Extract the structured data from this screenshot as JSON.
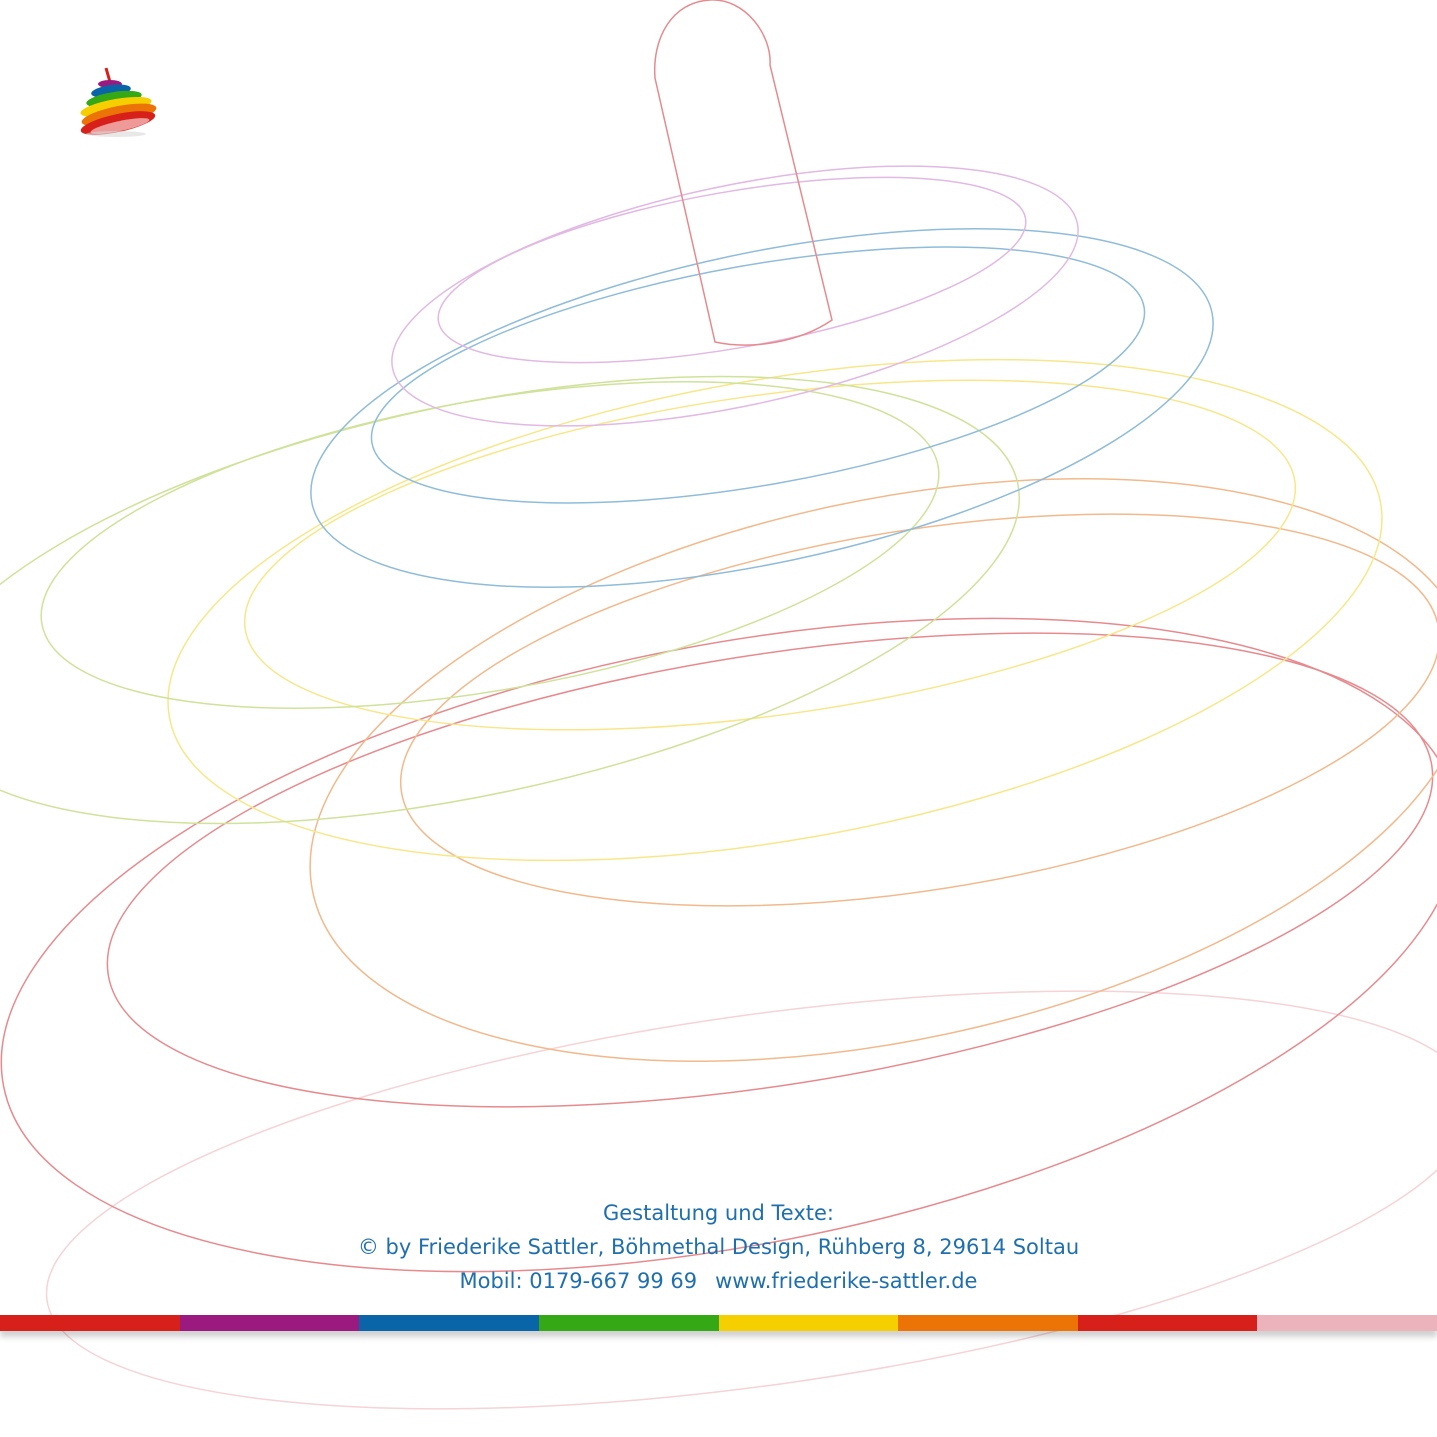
{
  "credits": {
    "heading": "Gestaltung und Texte:",
    "copyright": "© by Friederike Sattler, Böhmethal Design, Rühberg 8, 29614 Soltau",
    "phone": "Mobil: 0179-667 99 69",
    "website": "www.friederike-sattler.de"
  },
  "logo": {
    "icon": "spinning-top-icon"
  },
  "colors": {
    "text": "#1f6fae",
    "stripe": [
      "#d8201b",
      "#9b1a80",
      "#0a64a8",
      "#35a815",
      "#f6cf00",
      "#ec7406",
      "#d8201b",
      "#ecb3bd"
    ],
    "rings": {
      "red": "#e78a8e",
      "orange": "#f2b98c",
      "yellow": "#f7e78a",
      "green": "#cfe29a",
      "blue": "#8fbcd9",
      "purple": "#e1b9e3"
    }
  }
}
